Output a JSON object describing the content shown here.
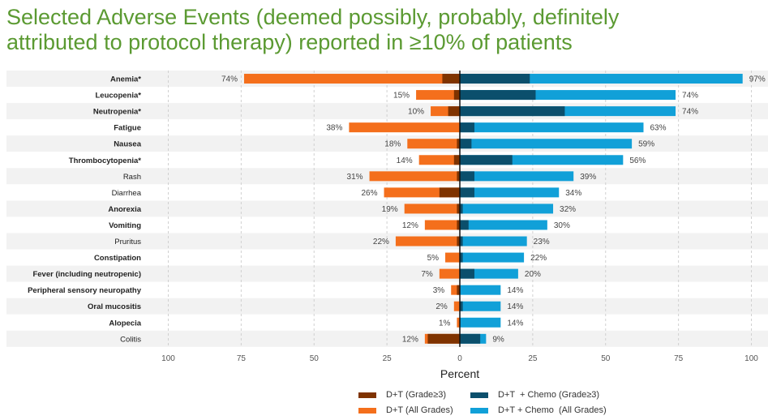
{
  "title": "Selected Adverse Events (deemed possibly, probably, definitely\nattributed to protocol therapy) reported in ≥10% of patients",
  "chart_data": {
    "type": "bar",
    "orientation": "horizontal-diverging",
    "xlabel": "Percent",
    "xlim": [
      -100,
      100
    ],
    "xticks": [
      "100",
      "75",
      "50",
      "25",
      "0",
      "25",
      "50",
      "75",
      "100"
    ],
    "grid": true,
    "legend_position": "bottom",
    "categories": [
      "Anemia*",
      "Leucopenia*",
      "Neutropenia*",
      "Fatigue",
      "Nausea",
      "Thrombocytopenia*",
      "Rash",
      "Diarrhea",
      "Anorexia",
      "Vomiting",
      "Pruritus",
      "Constipation",
      "Fever (including neutropenic)",
      "Peripheral sensory neuropathy",
      "Oral mucositis",
      "Alopecia",
      "Colitis"
    ],
    "bold_categories": [
      true,
      true,
      true,
      true,
      true,
      true,
      false,
      false,
      true,
      true,
      false,
      true,
      true,
      true,
      true,
      true,
      false
    ],
    "series": [
      {
        "name": "D+T (Grade≥3)",
        "side": "left",
        "color": "#7f3300",
        "values": [
          6,
          2,
          4,
          0,
          1,
          2,
          1,
          7,
          1,
          1,
          1,
          0,
          0,
          1,
          0,
          0,
          11
        ]
      },
      {
        "name": "D+T (All Grades)",
        "side": "left",
        "color": "#f46f1c",
        "values": [
          74,
          15,
          10,
          38,
          18,
          14,
          31,
          26,
          19,
          12,
          22,
          5,
          7,
          3,
          2,
          1,
          12
        ]
      },
      {
        "name": "D+T  + Chemo (Grade≥3)",
        "side": "right",
        "color": "#0b4f6c",
        "values": [
          24,
          26,
          36,
          5,
          4,
          18,
          5,
          5,
          1,
          3,
          1,
          1,
          5,
          0,
          1,
          0,
          7
        ]
      },
      {
        "name": "D+T + Chemo  (All Grades)",
        "side": "right",
        "color": "#11a0d8",
        "values": [
          97,
          74,
          74,
          63,
          59,
          56,
          39,
          34,
          32,
          30,
          23,
          22,
          20,
          14,
          14,
          14,
          9
        ]
      }
    ],
    "left_labels": [
      "74%",
      "15%",
      "10%",
      "38%",
      "18%",
      "14%",
      "31%",
      "26%",
      "19%",
      "12%",
      "22%",
      "5%",
      "7%",
      "3%",
      "2%",
      "1%",
      "12%"
    ],
    "right_labels": [
      "97%",
      "74%",
      "74%",
      "63%",
      "59%",
      "56%",
      "39%",
      "34%",
      "32%",
      "30%",
      "23%",
      "22%",
      "20%",
      "14%",
      "14%",
      "14%",
      "9%"
    ]
  }
}
